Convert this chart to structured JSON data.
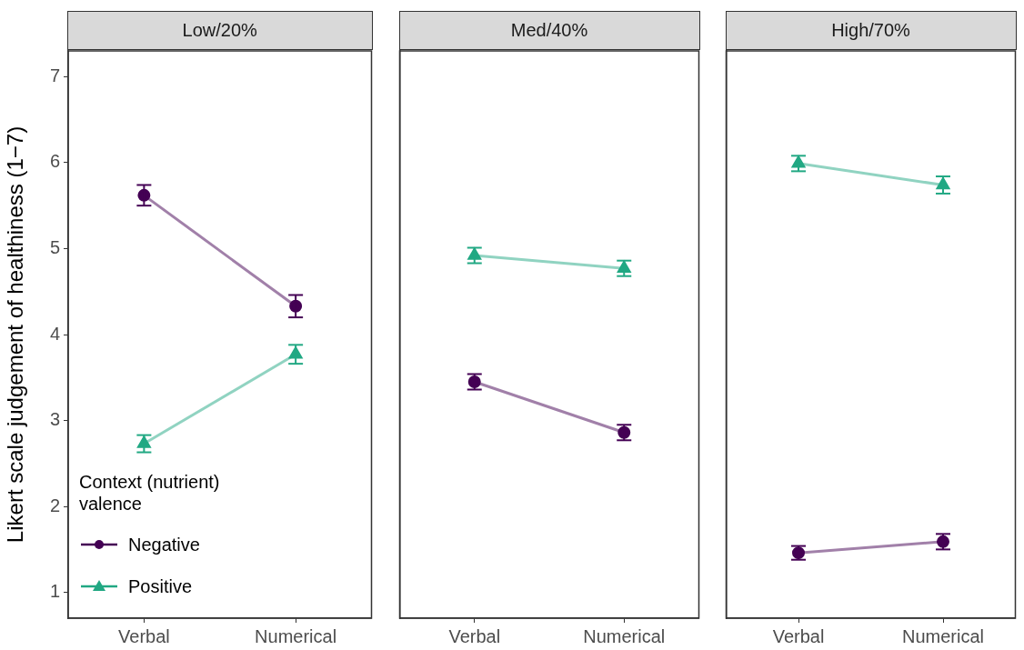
{
  "chart_data": [
    {
      "type": "line",
      "title": "Low/20%",
      "ylabel": "Likert scale judgement of healthiness (1−7)",
      "legend_title": "Context (nutrient) valence",
      "legend": "bottom left",
      "categories": [
        "Verbal",
        "Numerical"
      ],
      "ylim": [
        0.7,
        7.3
      ],
      "yticks": [
        1,
        2,
        3,
        4,
        5,
        6,
        7
      ],
      "series": [
        {
          "name": "Negative",
          "color": "#440154",
          "marker": "circle",
          "values": [
            5.62,
            4.33
          ],
          "errors": [
            0.12,
            0.13
          ]
        },
        {
          "name": "Positive",
          "color": "#21a883",
          "marker": "triangle",
          "values": [
            2.73,
            3.77
          ],
          "errors": [
            0.1,
            0.11
          ]
        }
      ]
    },
    {
      "type": "line",
      "title": "Med/40%",
      "categories": [
        "Verbal",
        "Numerical"
      ],
      "ylim": [
        0.7,
        7.3
      ],
      "yticks": [
        1,
        2,
        3,
        4,
        5,
        6,
        7
      ],
      "tick_labels": "x",
      "series": [
        {
          "color": "#440154",
          "marker": "circle",
          "values": [
            3.45,
            2.86
          ],
          "errors": [
            0.09,
            0.09
          ]
        },
        {
          "color": "#21a883",
          "marker": "triangle",
          "values": [
            4.92,
            4.77
          ],
          "errors": [
            0.09,
            0.09
          ]
        }
      ]
    },
    {
      "type": "line",
      "title": "High/70%",
      "categories": [
        "Verbal",
        "Numerical"
      ],
      "ylim": [
        0.7,
        7.3
      ],
      "yticks": [
        1,
        2,
        3,
        4,
        5,
        6,
        7
      ],
      "tick_labels": "x",
      "series": [
        {
          "color": "#440154",
          "marker": "circle",
          "values": [
            1.46,
            1.59
          ],
          "errors": [
            0.08,
            0.09
          ]
        },
        {
          "color": "#21a883",
          "marker": "triangle",
          "values": [
            5.99,
            5.74
          ],
          "errors": [
            0.09,
            0.1
          ]
        }
      ]
    }
  ]
}
